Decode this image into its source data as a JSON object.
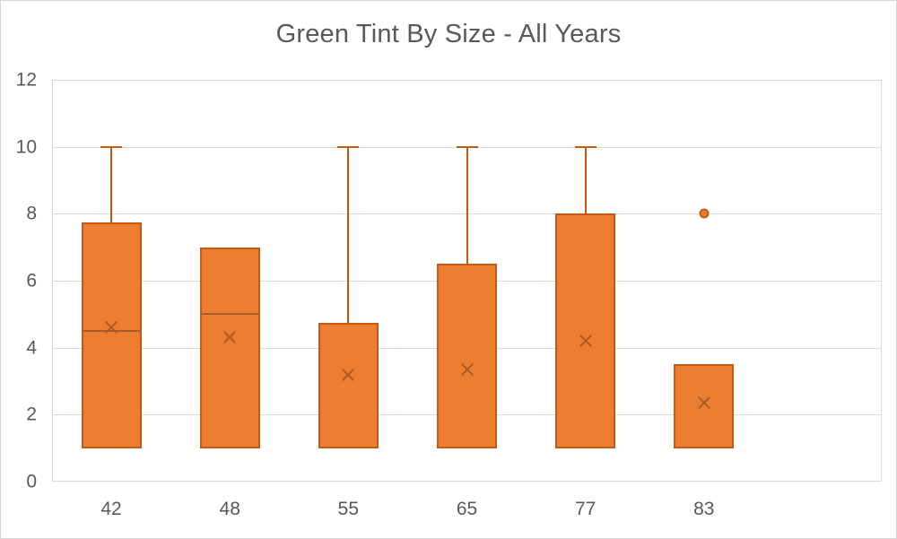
{
  "chart_data": {
    "type": "boxplot",
    "title": "Green Tint By Size - All Years",
    "categories": [
      "42",
      "48",
      "55",
      "65",
      "77",
      "83"
    ],
    "y_axis": {
      "min": 0,
      "max": 12,
      "ticks": [
        0,
        2,
        4,
        6,
        8,
        10,
        12
      ]
    },
    "grid": "horizontal",
    "legend": "none",
    "series": [
      {
        "name": "Green Tint",
        "boxes": [
          {
            "category": "42",
            "min": 1,
            "q1": 1,
            "median": 4.5,
            "q3": 7.75,
            "max": 10,
            "mean": 4.6,
            "outliers": []
          },
          {
            "category": "48",
            "min": 1,
            "q1": 1,
            "median": 5,
            "q3": 7,
            "max": 7,
            "mean": 4.3,
            "outliers": []
          },
          {
            "category": "55",
            "min": 1,
            "q1": 1,
            "median": null,
            "q3": 4.75,
            "max": 10,
            "mean": 3.2,
            "outliers": []
          },
          {
            "category": "65",
            "min": 1,
            "q1": 1,
            "median": null,
            "q3": 6.5,
            "max": 10,
            "mean": 3.35,
            "outliers": []
          },
          {
            "category": "77",
            "min": 1,
            "q1": 1,
            "median": null,
            "q3": 8,
            "max": 10,
            "mean": 4.2,
            "outliers": []
          },
          {
            "category": "83",
            "min": 1,
            "q1": 1,
            "median": null,
            "q3": 3.5,
            "max": 3.5,
            "mean": 2.35,
            "outliers": [
              8
            ]
          }
        ]
      }
    ],
    "colors": {
      "box_fill": "#ED7D31",
      "box_border": "#C45911",
      "median_mean": "#A85B28",
      "gridline": "#D9D9D9",
      "text": "#595959"
    }
  }
}
